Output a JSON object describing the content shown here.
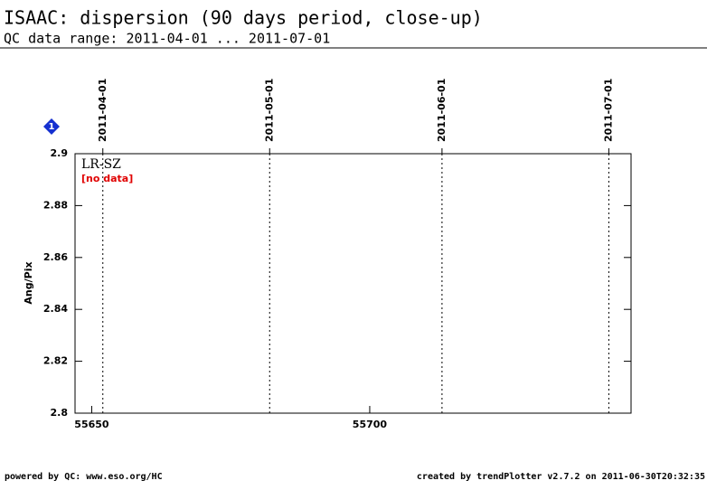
{
  "chart_data": {
    "type": "scatter",
    "title": "ISAAC: dispersion (90 days period, close-up)",
    "subtitle": "QC data range: 2011-04-01 ... 2011-07-01",
    "ylabel": "Ang/Pix",
    "series": [
      {
        "name": "LR-SZ",
        "color": "#000000",
        "x": [],
        "values": []
      }
    ],
    "annotations": [
      "[no data]"
    ],
    "badge": "1",
    "xlim": [
      55647,
      55747
    ],
    "xticks": [
      55650,
      55700
    ],
    "ylim": [
      2.8,
      2.9
    ],
    "yticks": [
      2.8,
      2.82,
      2.84,
      2.86,
      2.88,
      2.9
    ],
    "date_markers": [
      {
        "value": 55652,
        "label": "2011-04-01"
      },
      {
        "value": 55682,
        "label": "2011-05-01"
      },
      {
        "value": 55713,
        "label": "2011-06-01"
      },
      {
        "value": 55743,
        "label": "2011-07-01"
      }
    ],
    "footer_left": "powered by QC: www.eso.org/HC",
    "footer_right": "created by trendPlotter v2.7.2 on 2011-06-30T20:32:35"
  }
}
